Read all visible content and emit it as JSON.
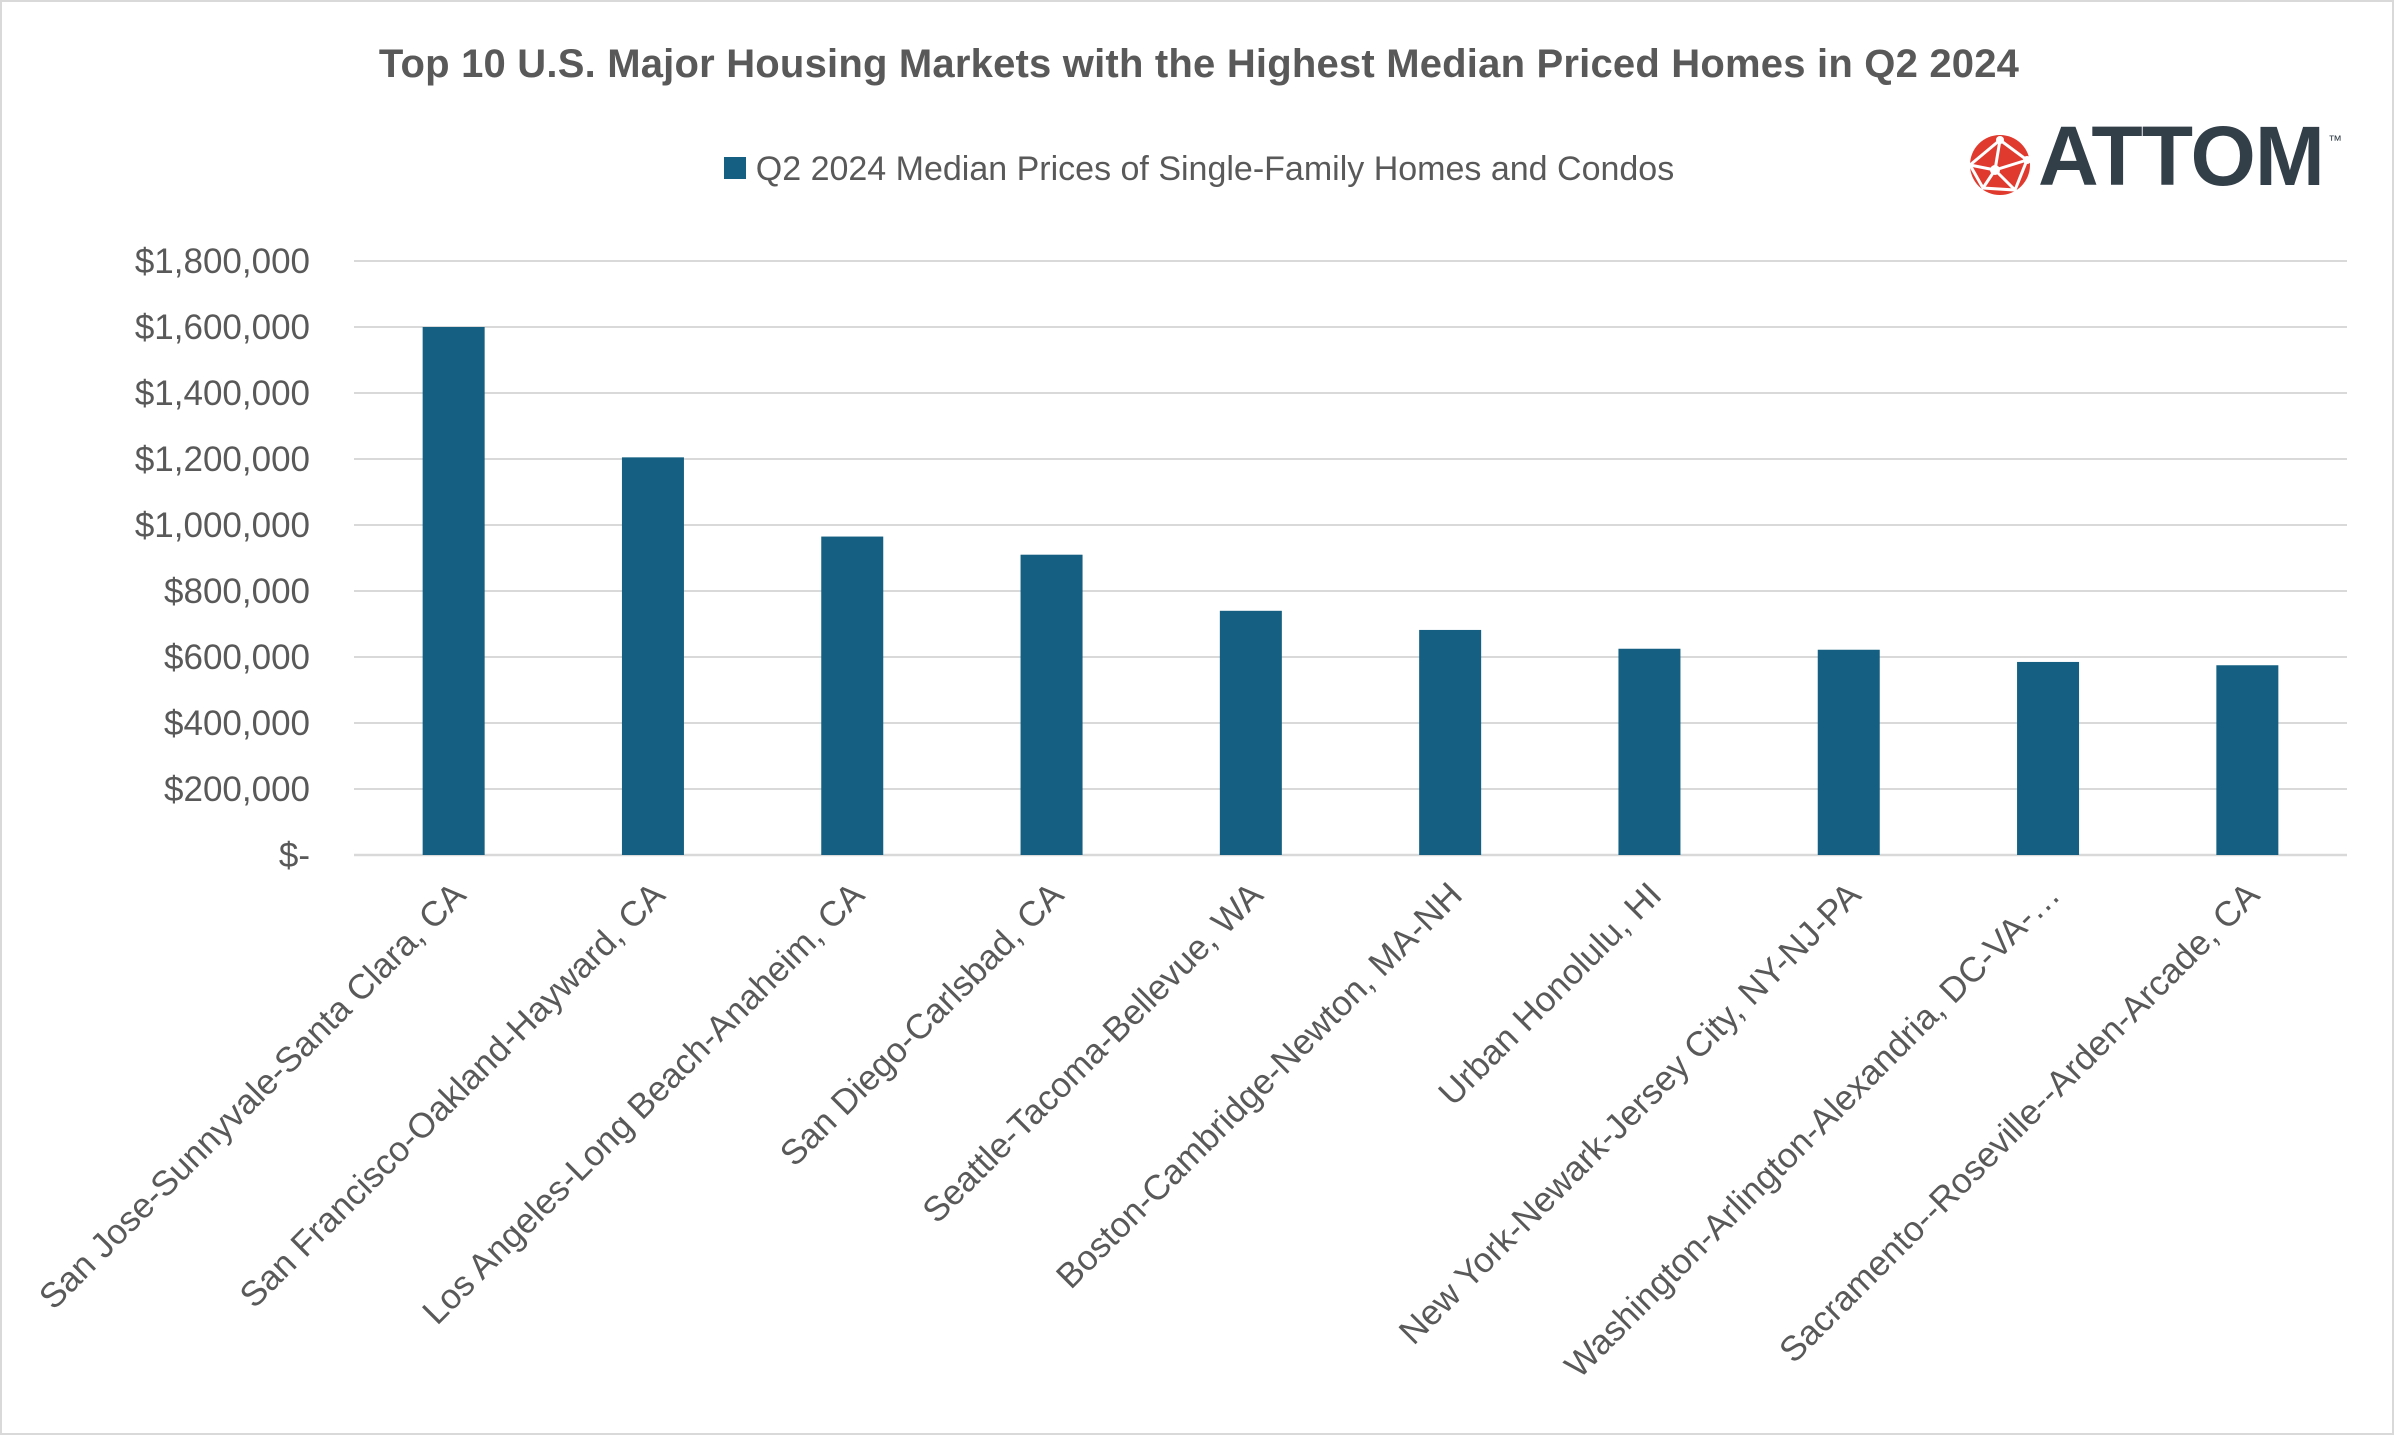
{
  "chart_data": {
    "type": "bar",
    "title": "Top 10 U.S. Major Housing Markets with the Highest Median Priced Homes in Q2 2024",
    "categories": [
      "San Jose-Sunnyvale-Santa Clara, CA",
      "San Francisco-Oakland-Hayward, CA",
      "Los Angeles-Long Beach-Anaheim, CA",
      "San Diego-Carlsbad, CA",
      "Seattle-Tacoma-Bellevue, WA",
      "Boston-Cambridge-Newton, MA-NH",
      "Urban Honolulu, HI",
      "New York-Newark-Jersey City, NY-NJ-PA",
      "Washington-Arlington-Alexandria, DC-VA-…",
      "Sacramento--Roseville--Arden-Arcade, CA"
    ],
    "series": [
      {
        "name": "Q2 2024 Median Prices of Single-Family Homes and Condos",
        "color": "#156082",
        "values": [
          1600000,
          1205000,
          965000,
          910000,
          740000,
          682000,
          625000,
          622000,
          585000,
          575000
        ]
      }
    ],
    "ylim": [
      0,
      1800000
    ],
    "yticks": [
      0,
      200000,
      400000,
      600000,
      800000,
      1000000,
      1200000,
      1400000,
      1600000,
      1800000
    ],
    "ytick_labels": [
      "$-",
      "$200,000",
      "$400,000",
      "$600,000",
      "$800,000",
      "$1,000,000",
      "$1,200,000",
      "$1,400,000",
      "$1,600,000",
      "$1,800,000"
    ],
    "grid": true,
    "legend_position": "top-center"
  },
  "logo": {
    "text": "ATTOM",
    "tm": "™",
    "icon": "globe-network-icon",
    "icon_color": "#e03a2e",
    "text_color": "#333f48"
  }
}
